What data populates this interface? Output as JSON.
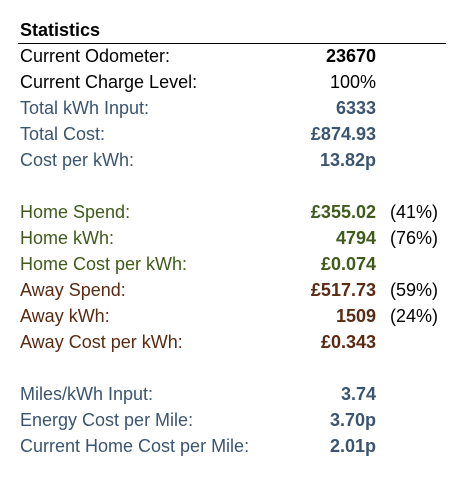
{
  "title": "Statistics",
  "colors": {
    "black": "#000000",
    "slate": "#3b5570",
    "green": "#3f5a1a",
    "brown": "#5a2a12"
  },
  "rows": {
    "current_odometer": {
      "label": "Current Odometer:",
      "value": "23670"
    },
    "current_charge_level": {
      "label": "Current Charge Level:",
      "value": "100%"
    },
    "total_kwh_input": {
      "label": "Total kWh Input:",
      "value": "6333"
    },
    "total_cost": {
      "label": "Total Cost:",
      "value": "£874.93"
    },
    "cost_per_kwh": {
      "label": "Cost per kWh:",
      "value": "13.82p"
    },
    "home_spend": {
      "label": "Home Spend:",
      "value": "£355.02",
      "pct": "(41%)"
    },
    "home_kwh": {
      "label": "Home kWh:",
      "value": "4794",
      "pct": "(76%)"
    },
    "home_cost_per_kwh": {
      "label": "Home Cost per kWh:",
      "value": "£0.074"
    },
    "away_spend": {
      "label": "Away Spend:",
      "value": "£517.73",
      "pct": "(59%)"
    },
    "away_kwh": {
      "label": "Away kWh:",
      "value": "1509",
      "pct": "(24%)"
    },
    "away_cost_per_kwh": {
      "label": "Away Cost per kWh:",
      "value": "£0.343"
    },
    "miles_per_kwh_input": {
      "label": "Miles/kWh Input:",
      "value": "3.74"
    },
    "energy_cost_per_mile": {
      "label": "Energy Cost per Mile:",
      "value": "3.70p"
    },
    "current_home_cost_per_mile": {
      "label": "Current Home Cost per Mile:",
      "value": "2.01p"
    }
  }
}
